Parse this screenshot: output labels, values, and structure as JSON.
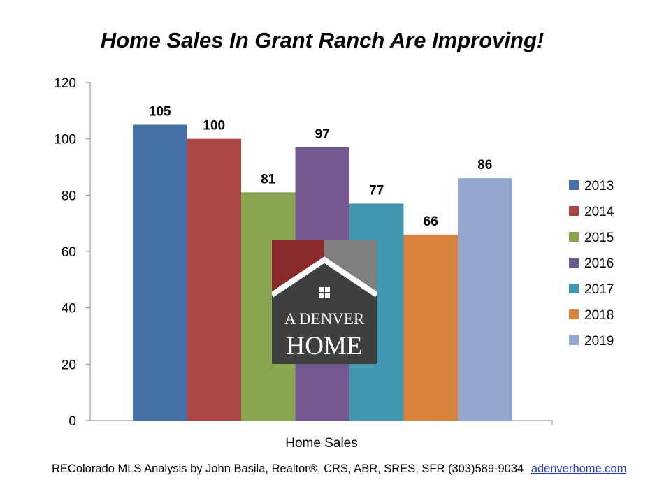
{
  "title": "Home Sales In Grant Ranch Are Improving!",
  "colors": {
    "2013": "#4570a6",
    "2014": "#aa4644",
    "2015": "#89a54e",
    "2016": "#71588f",
    "2017": "#4298af",
    "2018": "#db843d",
    "2019": "#93a9cf"
  },
  "chart_data": {
    "type": "bar",
    "categories": [
      "Home Sales"
    ],
    "series": [
      {
        "name": "2013",
        "values": [
          105
        ]
      },
      {
        "name": "2014",
        "values": [
          100
        ]
      },
      {
        "name": "2015",
        "values": [
          81
        ]
      },
      {
        "name": "2016",
        "values": [
          97
        ]
      },
      {
        "name": "2017",
        "values": [
          77
        ]
      },
      {
        "name": "2018",
        "values": [
          66
        ]
      },
      {
        "name": "2019",
        "values": [
          86
        ]
      }
    ],
    "title": "Home Sales In Grant Ranch Are Improving!",
    "xlabel": "",
    "ylabel": "",
    "ylim": [
      0,
      120
    ],
    "yticks": [
      0,
      20,
      40,
      60,
      80,
      100,
      120
    ],
    "grid": false,
    "legend": "right"
  },
  "logo": {
    "line1": "A DENVER",
    "line2": "HOME"
  },
  "footer": {
    "text": "REColorado MLS    Analysis by John Basila, Realtor®, CRS, ABR, SRES, SFR (303)589-9034",
    "link": "adenverhome.com"
  }
}
